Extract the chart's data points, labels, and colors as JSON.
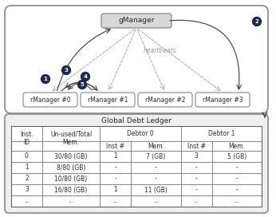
{
  "gmanager_label": "gManager",
  "rmanager_labels": [
    "rManager #0",
    "rManager #1",
    "rManager #2",
    "rManager #3"
  ],
  "heartbeats_label": "heartbeats",
  "table_title": "Global Debt Ledger",
  "table_data": [
    [
      "0",
      "30/80 (GB)",
      "1",
      "7 (GB)",
      "3",
      "5 (GB)"
    ],
    [
      "1",
      "8/80 (GB)",
      "-",
      "-",
      "-",
      "-"
    ],
    [
      "2",
      "10/80 (GB)",
      "-",
      "-",
      "-",
      "-"
    ],
    [
      "3",
      "16/80 (GB)",
      "1",
      "11 (GB)",
      "-",
      "-"
    ],
    [
      "...",
      "...",
      "...",
      "...",
      "...",
      "..."
    ]
  ],
  "circle_color": "#1c2951",
  "circle_text_color": "#ffffff",
  "arrow_color": "#444444",
  "dashed_color": "#aaaaaa",
  "text_color": "#2a2a2a",
  "italic_color": "#999999",
  "box_edge": "#888888",
  "top_bg": "#ffffff",
  "bot_bg": "#efefef",
  "gm_box_bg": "#d8d8d8",
  "rm_box_bg": "#ffffff",
  "table_bg": "#ffffff",
  "outer_edge": "#888888"
}
